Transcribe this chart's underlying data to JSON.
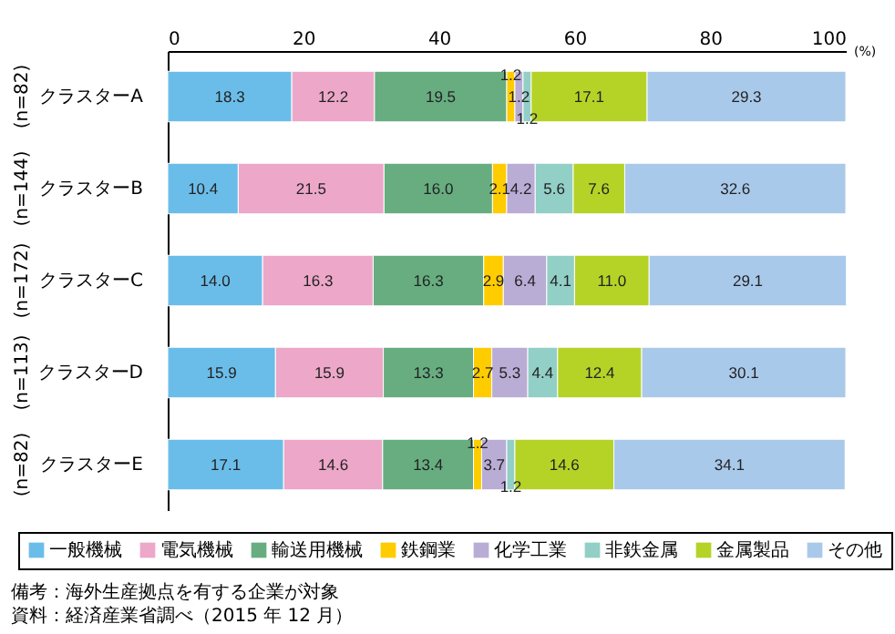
{
  "chart_data": {
    "type": "bar",
    "orientation": "horizontal",
    "stacked": true,
    "xlabel": "(%)",
    "categories": [
      "クラスターA",
      "クラスターB",
      "クラスターC",
      "クラスターD",
      "クラスターE"
    ],
    "xlim": [
      0,
      100
    ],
    "xticks": [
      0,
      20,
      40,
      60,
      80,
      100
    ],
    "grid": false,
    "legend": "bottom",
    "series": [
      {
        "name": "一般機械",
        "color": "#6bbde9",
        "values": [
          18.3,
          10.4,
          14.0,
          15.9,
          17.1
        ],
        "value_labels": [
          "18.3",
          "10.4",
          "14.0",
          "15.9",
          "17.1"
        ]
      },
      {
        "name": "電気機械",
        "color": "#eca7c9",
        "values": [
          12.2,
          21.5,
          16.3,
          15.9,
          14.6
        ],
        "value_labels": [
          "12.2",
          "21.5",
          "16.3",
          "15.9",
          "14.6"
        ]
      },
      {
        "name": "輸送用機械",
        "color": "#67ad80",
        "values": [
          19.5,
          16.0,
          16.3,
          13.3,
          13.4
        ],
        "value_labels": [
          "19.5",
          "16.0",
          "16.3",
          "13.3",
          "13.4"
        ]
      },
      {
        "name": "鉄鋼業",
        "color": "#ffcc00",
        "values": [
          1.2,
          2.1,
          2.9,
          2.7,
          1.2
        ],
        "value_labels": [
          "1.2",
          "2.1",
          "2.9",
          "2.7",
          "1.2"
        ]
      },
      {
        "name": "化学工業",
        "color": "#b9acd5",
        "values": [
          1.2,
          4.2,
          6.4,
          5.3,
          3.7
        ],
        "value_labels": [
          "1.2",
          "4.2",
          "6.4",
          "5.3",
          "3.7"
        ]
      },
      {
        "name": "非鉄金属",
        "color": "#92cfc6",
        "values": [
          1.2,
          5.6,
          4.1,
          4.4,
          1.2
        ],
        "value_labels": [
          "1.2",
          "5.6",
          "4.1",
          "4.4",
          "1.2"
        ]
      },
      {
        "name": "金属製品",
        "color": "#b5d327",
        "values": [
          17.1,
          7.6,
          11.0,
          12.4,
          14.6
        ],
        "value_labels": [
          "17.1",
          "7.6",
          "11.0",
          "12.4",
          "14.6"
        ]
      },
      {
        "name": "その他",
        "color": "#a9c9ea",
        "values": [
          29.3,
          32.6,
          29.1,
          30.1,
          34.1
        ],
        "value_labels": [
          "29.3",
          "32.6",
          "29.1",
          "30.1",
          "34.1"
        ]
      }
    ],
    "annotations": [
      "(n=82)",
      "(n=144)",
      "(n=172)",
      "(n=113)",
      "(n=82)",
      "備考：海外生産拠点を有する企業が対象",
      "資料：経済産業省調べ（2015 年 12 月）"
    ]
  }
}
